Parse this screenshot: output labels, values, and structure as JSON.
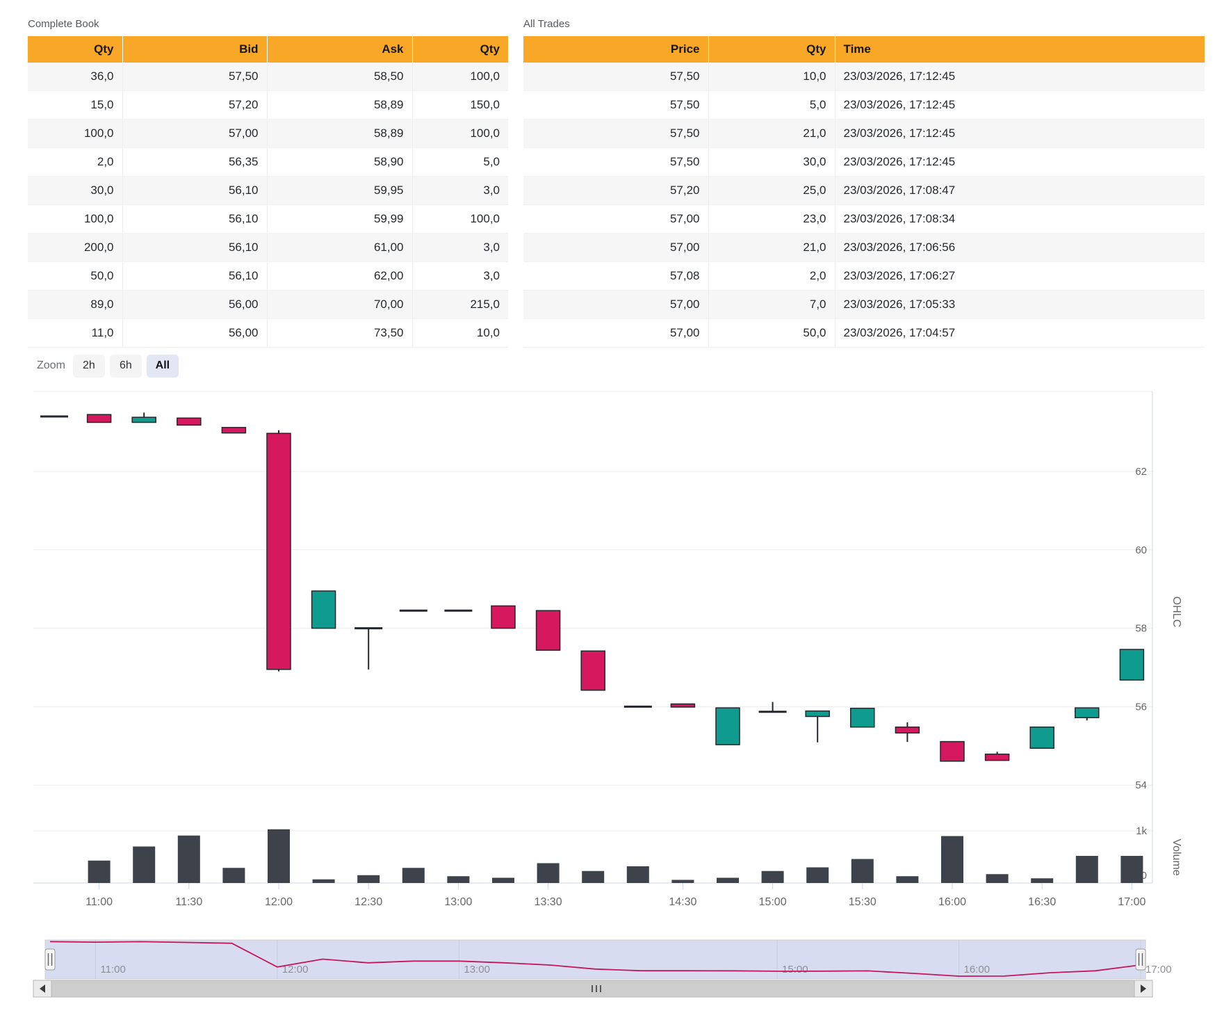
{
  "book": {
    "title": "Complete Book",
    "columns": [
      "Qty",
      "Bid",
      "Ask",
      "Qty"
    ],
    "rows": [
      [
        "36,0",
        "57,50",
        "58,50",
        "100,0"
      ],
      [
        "15,0",
        "57,20",
        "58,89",
        "150,0"
      ],
      [
        "100,0",
        "57,00",
        "58,89",
        "100,0"
      ],
      [
        "2,0",
        "56,35",
        "58,90",
        "5,0"
      ],
      [
        "30,0",
        "56,10",
        "59,95",
        "3,0"
      ],
      [
        "100,0",
        "56,10",
        "59,99",
        "100,0"
      ],
      [
        "200,0",
        "56,10",
        "61,00",
        "3,0"
      ],
      [
        "50,0",
        "56,10",
        "62,00",
        "3,0"
      ],
      [
        "89,0",
        "56,00",
        "70,00",
        "215,0"
      ],
      [
        "11,0",
        "56,00",
        "73,50",
        "10,0"
      ]
    ]
  },
  "trades": {
    "title": "All Trades",
    "columns": [
      "Price",
      "Qty",
      "Time"
    ],
    "rows": [
      [
        "57,50",
        "10,0",
        "23/03/2026, 17:12:45"
      ],
      [
        "57,50",
        "5,0",
        "23/03/2026, 17:12:45"
      ],
      [
        "57,50",
        "21,0",
        "23/03/2026, 17:12:45"
      ],
      [
        "57,50",
        "30,0",
        "23/03/2026, 17:12:45"
      ],
      [
        "57,20",
        "25,0",
        "23/03/2026, 17:08:47"
      ],
      [
        "57,00",
        "23,0",
        "23/03/2026, 17:08:34"
      ],
      [
        "57,00",
        "21,0",
        "23/03/2026, 17:06:56"
      ],
      [
        "57,08",
        "2,0",
        "23/03/2026, 17:06:27"
      ],
      [
        "57,00",
        "7,0",
        "23/03/2026, 17:05:33"
      ],
      [
        "57,00",
        "50,0",
        "23/03/2026, 17:04:57"
      ]
    ]
  },
  "zoom_controls": {
    "label": "Zoom",
    "options": [
      {
        "label": "2h",
        "active": false
      },
      {
        "label": "6h",
        "active": false
      },
      {
        "label": "All",
        "active": true
      }
    ]
  },
  "chart_data": {
    "type": "candlestick",
    "panes": [
      "OHLC",
      "Volume"
    ],
    "y_axis": {
      "title": "OHLC",
      "ticks": [
        62,
        60,
        58,
        56,
        54
      ],
      "range": [
        53.6,
        64.0
      ]
    },
    "volume_axis": {
      "title": "Volume",
      "ticks": [
        "1k",
        "0"
      ],
      "range": [
        0,
        1400
      ]
    },
    "x_axis_labels": [
      "11:00",
      "11:30",
      "12:00",
      "12:30",
      "13:00",
      "13:30",
      "14:30",
      "15:00",
      "15:30",
      "16:00",
      "16:30",
      "17:00"
    ],
    "navigator_labels": [
      "11:00",
      "12:00",
      "13:00",
      "15:00",
      "16:00",
      "17:00"
    ],
    "candles": [
      {
        "time": "10:45",
        "open": 63.4,
        "high": 63.4,
        "low": 63.4,
        "close": 63.4,
        "volume": 0,
        "xlabel": null
      },
      {
        "time": "11:00",
        "open": 63.45,
        "high": 63.45,
        "low": 63.25,
        "close": 63.25,
        "volume": 430,
        "xlabel": "11:00"
      },
      {
        "time": "11:15",
        "open": 63.25,
        "high": 63.5,
        "low": 63.25,
        "close": 63.38,
        "volume": 700,
        "xlabel": null
      },
      {
        "time": "11:30",
        "open": 63.36,
        "high": 63.36,
        "low": 63.18,
        "close": 63.18,
        "volume": 910,
        "xlabel": "11:30"
      },
      {
        "time": "11:45",
        "open": 63.12,
        "high": 63.12,
        "low": 62.98,
        "close": 62.98,
        "volume": 290,
        "xlabel": null
      },
      {
        "time": "12:00",
        "open": 62.97,
        "high": 63.05,
        "low": 56.9,
        "close": 56.95,
        "volume": 1030,
        "xlabel": "12:00"
      },
      {
        "time": "12:15",
        "open": 58.0,
        "high": 58.95,
        "low": 58.0,
        "close": 58.95,
        "volume": 70,
        "xlabel": null
      },
      {
        "time": "12:30",
        "open": 58.0,
        "high": 58.0,
        "low": 56.95,
        "close": 58.0,
        "volume": 150,
        "xlabel": "12:30"
      },
      {
        "time": "12:45",
        "open": 58.45,
        "high": 58.45,
        "low": 58.45,
        "close": 58.45,
        "volume": 290,
        "xlabel": null
      },
      {
        "time": "13:00",
        "open": 58.45,
        "high": 58.45,
        "low": 58.45,
        "close": 58.45,
        "volume": 130,
        "xlabel": "13:00"
      },
      {
        "time": "13:15",
        "open": 58.57,
        "high": 58.57,
        "low": 58.0,
        "close": 58.0,
        "volume": 100,
        "xlabel": null
      },
      {
        "time": "13:30",
        "open": 58.45,
        "high": 58.45,
        "low": 57.44,
        "close": 57.44,
        "volume": 380,
        "xlabel": "13:30"
      },
      {
        "time": "13:45",
        "open": 57.42,
        "high": 57.42,
        "low": 56.42,
        "close": 56.42,
        "volume": 230,
        "xlabel": null
      },
      {
        "time": "14:15",
        "open": 56.0,
        "high": 56.0,
        "low": 56.0,
        "close": 56.0,
        "volume": 320,
        "xlabel": null
      },
      {
        "time": "14:30",
        "open": 56.07,
        "high": 56.07,
        "low": 55.99,
        "close": 55.99,
        "volume": 60,
        "xlabel": "14:30"
      },
      {
        "time": "14:45",
        "open": 55.03,
        "high": 55.97,
        "low": 55.03,
        "close": 55.97,
        "volume": 100,
        "xlabel": null
      },
      {
        "time": "15:00",
        "open": 55.87,
        "high": 56.12,
        "low": 55.85,
        "close": 55.87,
        "volume": 230,
        "xlabel": "15:00"
      },
      {
        "time": "15:15",
        "open": 55.75,
        "high": 55.89,
        "low": 55.09,
        "close": 55.89,
        "volume": 300,
        "xlabel": null
      },
      {
        "time": "15:30",
        "open": 55.48,
        "high": 55.96,
        "low": 55.48,
        "close": 55.96,
        "volume": 460,
        "xlabel": "15:30"
      },
      {
        "time": "15:45",
        "open": 55.48,
        "high": 55.6,
        "low": 55.1,
        "close": 55.33,
        "volume": 130,
        "xlabel": null
      },
      {
        "time": "16:00",
        "open": 55.11,
        "high": 55.11,
        "low": 54.61,
        "close": 54.61,
        "volume": 900,
        "xlabel": "16:00"
      },
      {
        "time": "16:15",
        "open": 54.79,
        "high": 54.85,
        "low": 54.63,
        "close": 54.63,
        "volume": 170,
        "xlabel": null
      },
      {
        "time": "16:30",
        "open": 54.94,
        "high": 55.48,
        "low": 54.94,
        "close": 55.48,
        "volume": 90,
        "xlabel": "16:30"
      },
      {
        "time": "16:45",
        "open": 55.72,
        "high": 55.97,
        "low": 55.65,
        "close": 55.97,
        "volume": 520,
        "xlabel": null
      },
      {
        "time": "17:00",
        "open": 56.68,
        "high": 57.46,
        "low": 56.68,
        "close": 57.46,
        "volume": 520,
        "xlabel": "17:00"
      }
    ]
  },
  "colors": {
    "header_orange": "#F8A826",
    "candle_up": "#0F9B8E",
    "candle_down": "#D6185F",
    "candle_stroke": "#23272d",
    "volume_bar": "#3E424A",
    "grid": "#ebebeb",
    "axis_line": "#CCD6EB",
    "axis_text": "#666666",
    "nav_fill": "#D8DCF0",
    "nav_grid": "#c6cbdd",
    "nav_line": "#C2185B",
    "nav_label": "#8e8e95",
    "scrollbar_track": "#cdcdcd",
    "scrollbar_border": "#b5b5b5",
    "scrollbar_button": "#ebebeb",
    "scrollbar_glyph": "#3a3a3a"
  }
}
